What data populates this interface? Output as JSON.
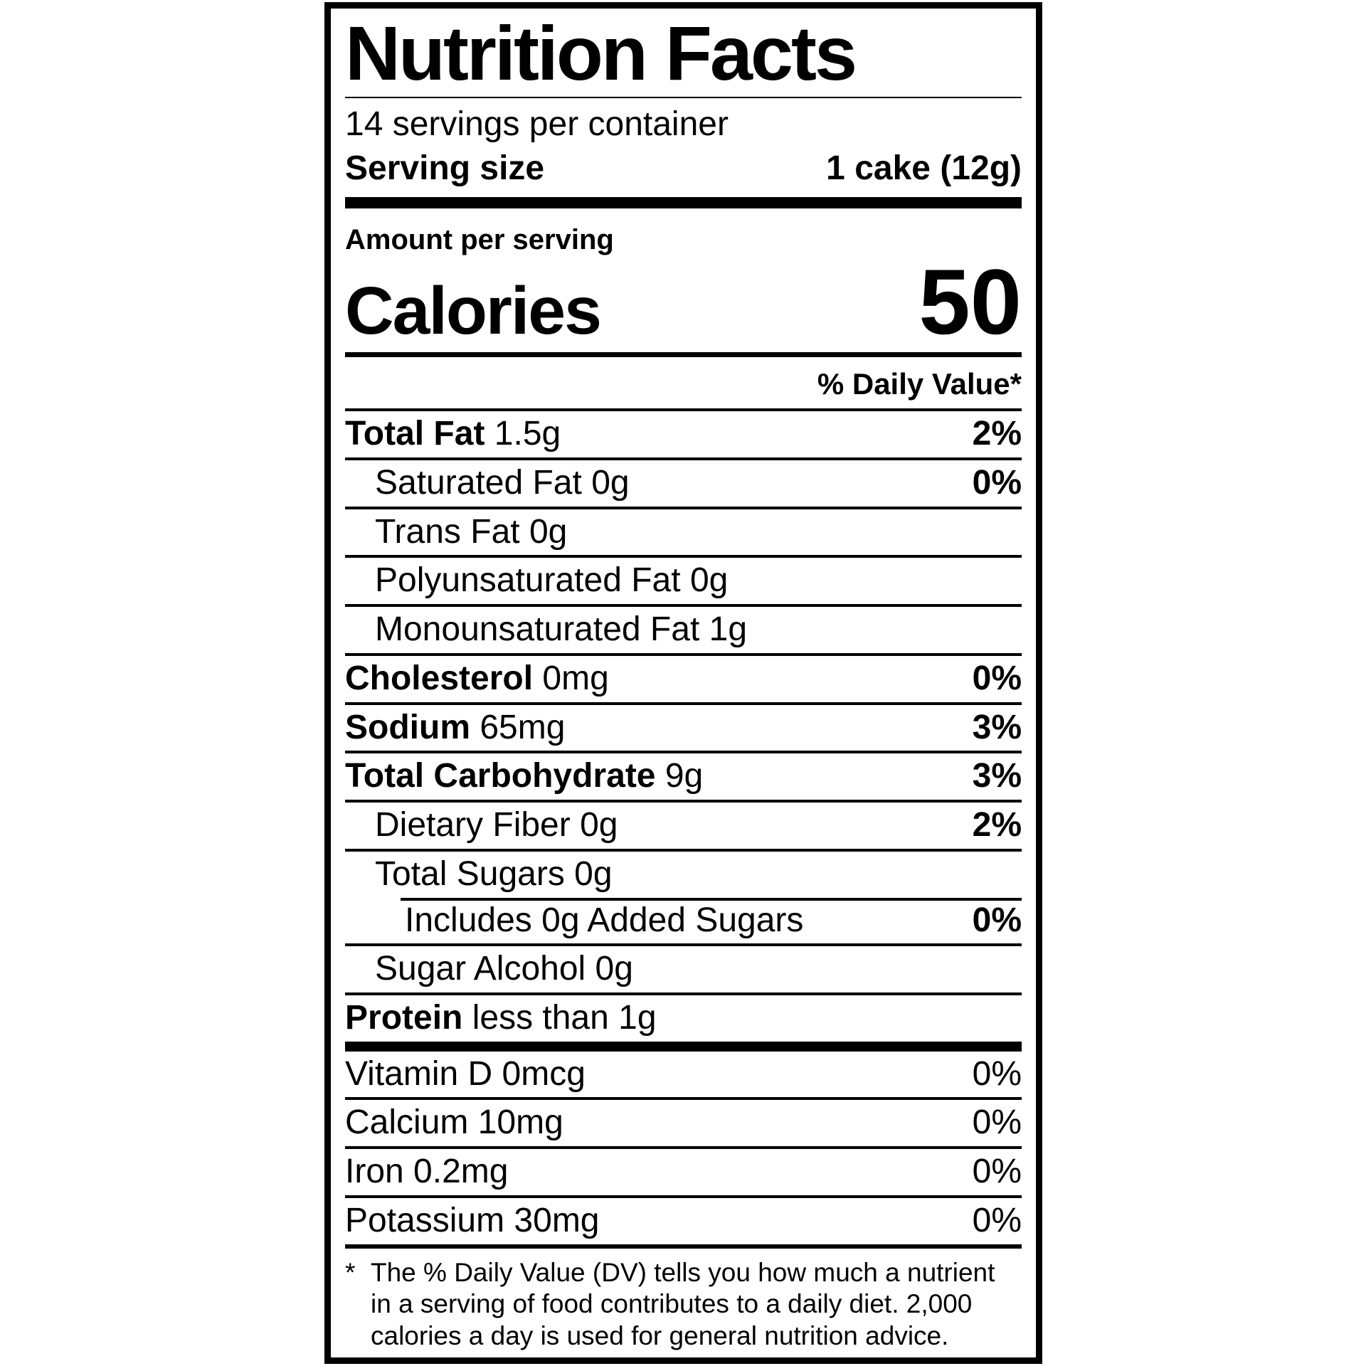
{
  "colors": {
    "ink": "#000000",
    "background": "#ffffff"
  },
  "label": {
    "title": "Nutrition Facts",
    "servings_per_container": "14 servings per container",
    "serving_size_label": "Serving size",
    "serving_size_value": "1 cake (12g)",
    "amount_per_serving": "Amount per serving",
    "calories_label": "Calories",
    "calories_value": "50",
    "daily_value_header": "% Daily Value*",
    "rows": [
      {
        "name": "Total Fat",
        "amount": "1.5g",
        "dv": "2%",
        "bold": true,
        "indent": 0
      },
      {
        "name": "Saturated Fat",
        "amount": "0g",
        "dv": "0%",
        "bold": false,
        "indent": 1
      },
      {
        "name": "Trans Fat",
        "amount": "0g",
        "dv": "",
        "bold": false,
        "indent": 1
      },
      {
        "name": "Polyunsaturated Fat",
        "amount": "0g",
        "dv": "",
        "bold": false,
        "indent": 1
      },
      {
        "name": "Monounsaturated Fat",
        "amount": "1g",
        "dv": "",
        "bold": false,
        "indent": 1
      },
      {
        "name": "Cholesterol",
        "amount": "0mg",
        "dv": "0%",
        "bold": true,
        "indent": 0
      },
      {
        "name": "Sodium",
        "amount": "65mg",
        "dv": "3%",
        "bold": true,
        "indent": 0
      },
      {
        "name": "Total Carbohydrate",
        "amount": "9g",
        "dv": "3%",
        "bold": true,
        "indent": 0
      },
      {
        "name": "Dietary Fiber",
        "amount": "0g",
        "dv": "2%",
        "bold": false,
        "indent": 1
      },
      {
        "name": "Total Sugars",
        "amount": "0g",
        "dv": "",
        "bold": false,
        "indent": 1
      },
      {
        "name": "Includes 0g Added Sugars",
        "amount": "",
        "dv": "0%",
        "bold": false,
        "indent": 2,
        "indent_separator": true
      },
      {
        "name": "Sugar Alcohol",
        "amount": "0g",
        "dv": "",
        "bold": false,
        "indent": 1
      },
      {
        "name": "Protein",
        "amount": "less than 1g",
        "dv": "",
        "bold": true,
        "indent": 0
      }
    ],
    "micronutrients": [
      {
        "name": "Vitamin D 0mcg",
        "dv": "0%"
      },
      {
        "name": "Calcium 10mg",
        "dv": "0%"
      },
      {
        "name": "Iron 0.2mg",
        "dv": "0%"
      },
      {
        "name": "Potassium 30mg",
        "dv": "0%"
      }
    ],
    "footnote_marker": "*",
    "footnote": "The % Daily Value (DV) tells you how much a nutrient in a serving of food contributes to a daily diet. 2,000 calories a day is used for general nutrition advice."
  }
}
